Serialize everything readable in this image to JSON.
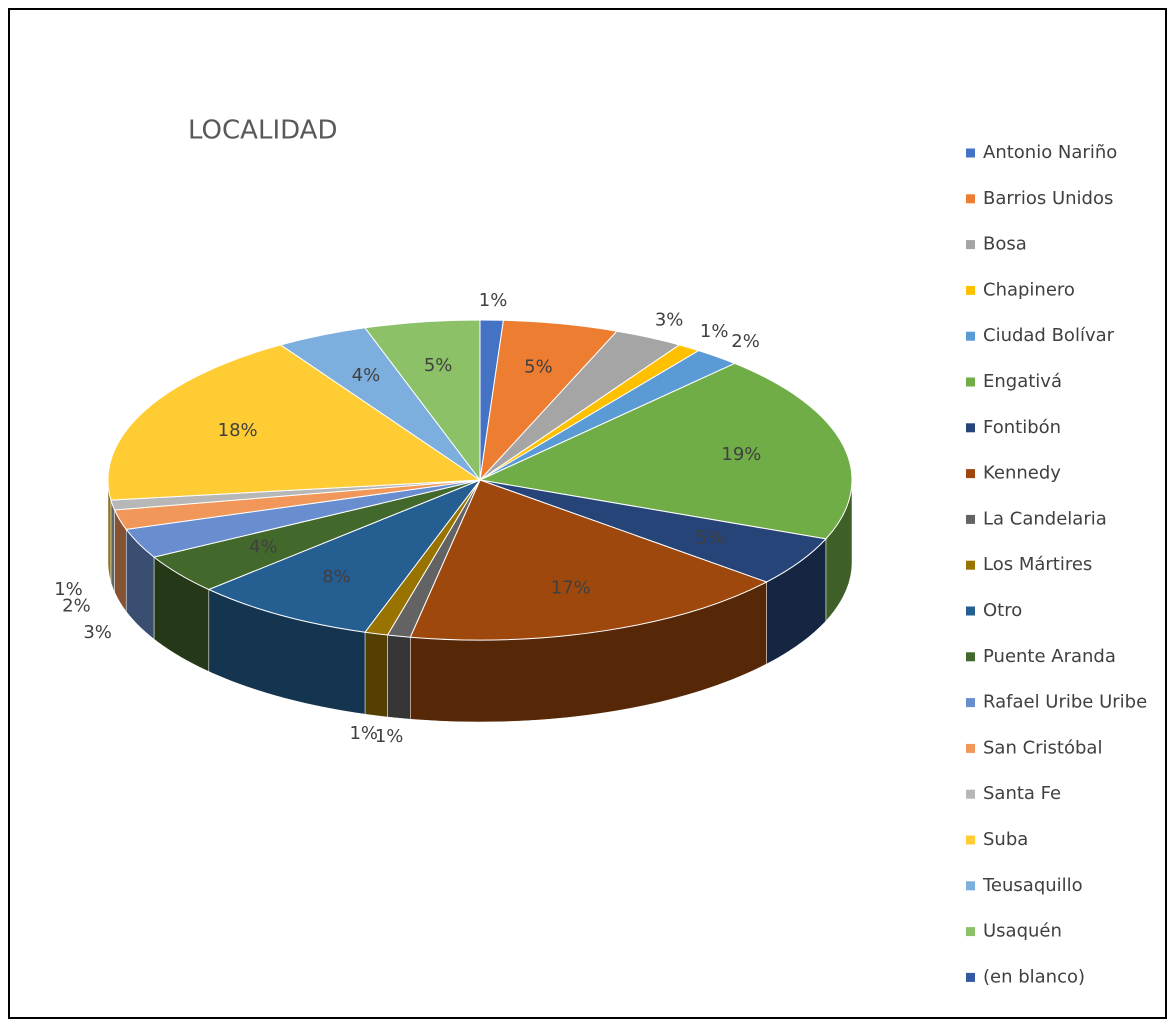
{
  "chart_data": {
    "type": "pie",
    "title": "LOCALIDAD",
    "categories": [
      "Antonio Nariño",
      "Barrios Unidos",
      "Bosa",
      "Chapinero",
      "Ciudad Bolívar",
      "Engativá",
      "Fontibón",
      "Kennedy",
      "La Candelaria",
      "Los Mártires",
      "Otro",
      "Puente Aranda",
      "Rafael Uribe Uribe",
      "San Cristóbal",
      "Santa Fe",
      "Suba",
      "Teusaquillo",
      "Usaquén",
      "(en blanco)"
    ],
    "values": [
      1,
      5,
      3,
      1,
      2,
      19,
      5,
      17,
      1,
      1,
      8,
      4,
      3,
      2,
      1,
      18,
      4,
      5,
      0
    ],
    "value_labels": [
      "1%",
      "5%",
      "3%",
      "1%",
      "2%",
      "19%",
      "5%",
      "17%",
      "1%",
      "1%",
      "8%",
      "4%",
      "3%",
      "2%",
      "1%",
      "18%",
      "4%",
      "5%",
      null
    ],
    "colors": [
      "#4472c4",
      "#ed7d31",
      "#a5a5a5",
      "#ffc000",
      "#5b9bd5",
      "#70ad47",
      "#264478",
      "#9e480e",
      "#636363",
      "#997300",
      "#255e91",
      "#43682b",
      "#698ed0",
      "#f1975a",
      "#b7b7b7",
      "#ffcd33",
      "#7cafdd",
      "#8cc168",
      "#335aa1"
    ],
    "legend": "right"
  }
}
